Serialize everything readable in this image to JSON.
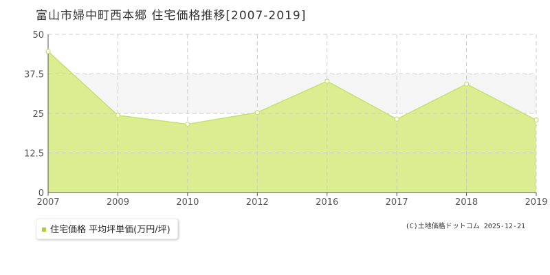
{
  "title": "富山市婦中町西本郷 住宅価格推移[2007-2019]",
  "credit": "(C)土地価格ドットコム 2025-12-21",
  "colors": {
    "fill": "#dcec90",
    "line": "#c8e070",
    "upper_band": "#f5f5f5",
    "grid": "#cccccc",
    "marker_fill": "#ffffff",
    "legend_swatch": "#a8d13a"
  },
  "chart_data": {
    "type": "area",
    "title": "",
    "xlabel": "",
    "ylabel": "",
    "x": [
      "2007",
      "2009",
      "2010",
      "2012",
      "2016",
      "2017",
      "2018",
      "2019"
    ],
    "series": [
      {
        "name": "住宅価格 平均坪単価(万円/坪)",
        "values": [
          44.6,
          24.4,
          21.6,
          25.3,
          35.2,
          23.2,
          34.3,
          22.9
        ]
      }
    ],
    "ylim": [
      0,
      50
    ],
    "yticks": [
      "0",
      "12.5",
      "25",
      "37.5",
      "50"
    ],
    "grid": true,
    "legend": "bottom-left"
  }
}
